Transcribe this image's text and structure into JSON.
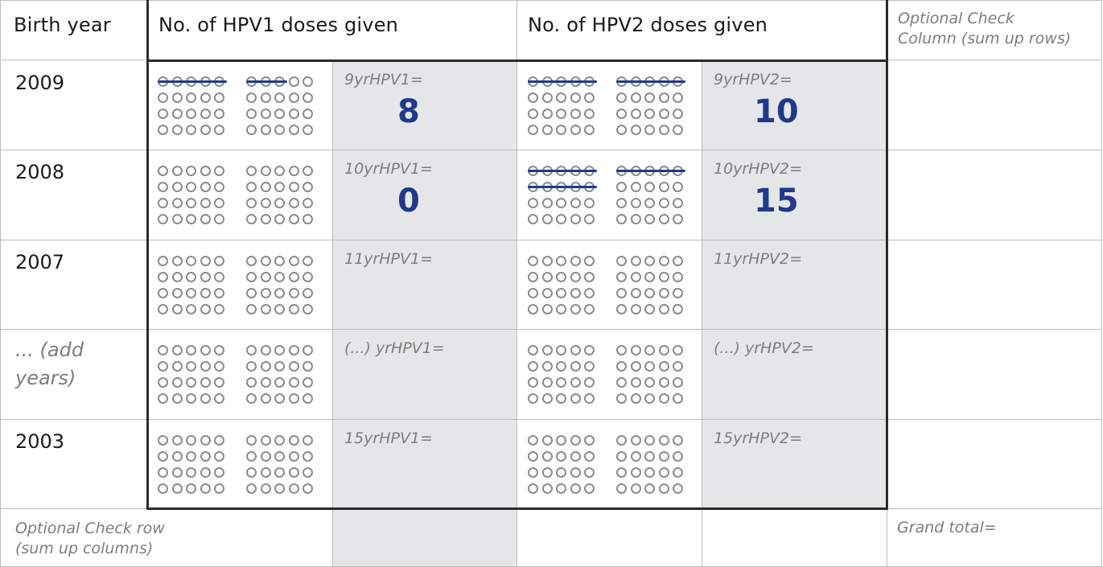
{
  "header": {
    "birth_year": "Birth  year",
    "hpv1": "No. of HPV1 doses given",
    "hpv2": "No. of HPV2 doses given",
    "optional_col_line1": "Optional Check",
    "optional_col_line2": "Column (sum up rows)"
  },
  "rows": [
    {
      "year": "2009",
      "hpv1_label": "9yrHPV1=",
      "hpv1_value": "8",
      "hpv2_label": "9yrHPV2=",
      "hpv2_value": "10",
      "hpv1_struck": 8,
      "hpv2_struck": 10
    },
    {
      "year": "2008",
      "hpv1_label": "10yrHPV1=",
      "hpv1_value": "0",
      "hpv2_label": "10yrHPV2=",
      "hpv2_value": "15",
      "hpv1_struck": 0,
      "hpv2_struck": 15
    },
    {
      "year": "2007",
      "hpv1_label": "11yrHPV1=",
      "hpv1_value": "",
      "hpv2_label": "11yrHPV2=",
      "hpv2_value": "",
      "hpv1_struck": 0,
      "hpv2_struck": 0
    },
    {
      "year_line1": "... (add",
      "year_line2": "years)",
      "hpv1_label": "(...) yrHPV1=",
      "hpv1_value": "",
      "hpv2_label": "(...) yrHPV2=",
      "hpv2_value": "",
      "hpv1_struck": 0,
      "hpv2_struck": 0
    },
    {
      "year": "2003",
      "hpv1_label": "15yrHPV1=",
      "hpv1_value": "",
      "hpv2_label": "15yrHPV2=",
      "hpv2_value": "",
      "hpv1_struck": 0,
      "hpv2_struck": 0
    }
  ],
  "footer": {
    "check_row_line1": "Optional Check row",
    "check_row_line2": "(sum up columns)",
    "grand_total": "Grand total="
  },
  "colors": {
    "shade": "#e5e6e8",
    "ink": "#1f3a8a",
    "dot": "#8c8c8c"
  }
}
